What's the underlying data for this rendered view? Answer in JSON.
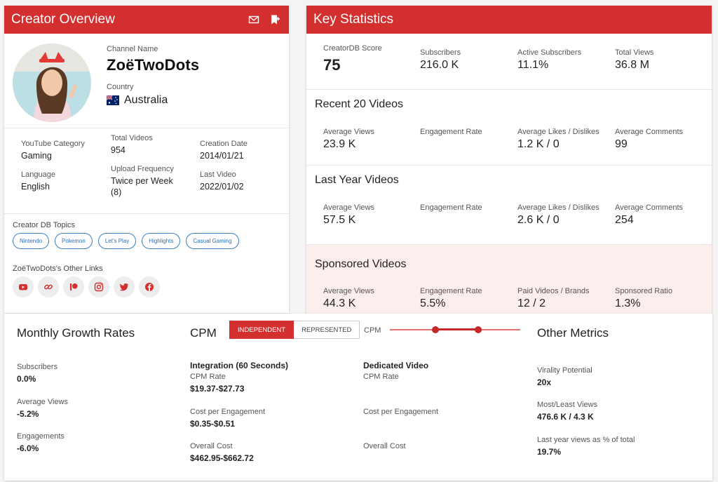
{
  "creator_overview": {
    "title": "Creator Overview",
    "icons": [
      "mail-icon",
      "bookmark-icon"
    ],
    "channel_name_label": "Channel Name",
    "channel_name": "ZoëTwoDots",
    "country_label": "Country",
    "country": "Australia",
    "meta": [
      {
        "label": "YouTube Category",
        "value": "Gaming"
      },
      {
        "label": "Language",
        "value": "English"
      },
      {
        "label": "Total Videos",
        "value": "954"
      },
      {
        "label": "Upload Frequency",
        "value": "Twice per Week (8)"
      },
      {
        "label": "Creation Date",
        "value": "2014/01/21"
      },
      {
        "label": "Last Video",
        "value": "2022/01/02"
      }
    ],
    "topics_label": "Creator DB Topics",
    "topics": [
      "Nintendo",
      "Pokemon",
      "Let's Play",
      "Highlights",
      "Casual Gaming"
    ],
    "links_label": "ZoëTwoDots's Other Links",
    "links": [
      "youtube-icon",
      "link-icon",
      "patreon-icon",
      "instagram-icon",
      "twitter-icon",
      "facebook-icon"
    ]
  },
  "key_statistics": {
    "title": "Key Statistics",
    "overview": [
      {
        "label": "CreatorDB Score",
        "value": "75"
      },
      {
        "label": "Subscribers",
        "value": "216.0 K"
      },
      {
        "label": "Active Subscribers",
        "value": "11.1%"
      },
      {
        "label": "Total Views",
        "value": "36.8 M"
      }
    ],
    "recent": {
      "title": "Recent 20 Videos",
      "stats": [
        {
          "label": "Average Views",
          "value": "23.9 K"
        },
        {
          "label": "Engagement Rate",
          "value": ""
        },
        {
          "label": "Average Likes / Dislikes",
          "value": "1.2 K / 0"
        },
        {
          "label": "Average Comments",
          "value": "99"
        }
      ]
    },
    "last_year": {
      "title": "Last Year Videos",
      "stats": [
        {
          "label": "Average Views",
          "value": "57.5 K"
        },
        {
          "label": "Engagement Rate",
          "value": ""
        },
        {
          "label": "Average Likes / Dislikes",
          "value": "2.6 K / 0"
        },
        {
          "label": "Average Comments",
          "value": "254"
        }
      ]
    },
    "sponsored": {
      "title": "Sponsored Videos",
      "stats": [
        {
          "label": "Average Views",
          "value": "44.3 K"
        },
        {
          "label": "Engagement Rate",
          "value": "5.5%"
        },
        {
          "label": "Paid Videos / Brands",
          "value": "12 / 2"
        },
        {
          "label": "Sponsored Ratio",
          "value": "1.3%"
        }
      ]
    }
  },
  "monthly_growth": {
    "title": "Monthly Growth Rates",
    "items": [
      {
        "label": "Subscribers",
        "value": "0.0%"
      },
      {
        "label": "Average Views",
        "value": "-5.2%"
      },
      {
        "label": "Engagements",
        "value": "-6.0%"
      }
    ]
  },
  "cpm": {
    "title": "CPM",
    "toggle": [
      "INDEPENDENT",
      "REPRESENTED"
    ],
    "slider_label": "CPM",
    "slider_range": [
      0.35,
      0.68
    ],
    "integration": {
      "heading": "Integration (60 Seconds)",
      "items": [
        {
          "label": "CPM Rate",
          "value": "$19.37-$27.73"
        },
        {
          "label": "Cost per Engagement",
          "value": "$0.35-$0.51"
        },
        {
          "label": "Overall Cost",
          "value": "$462.95-$662.72"
        }
      ]
    },
    "dedicated": {
      "heading": "Dedicated Video",
      "items": [
        {
          "label": "CPM Rate",
          "value": ""
        },
        {
          "label": "Cost per Engagement",
          "value": ""
        },
        {
          "label": "Overall Cost",
          "value": ""
        }
      ]
    }
  },
  "other_metrics": {
    "title": "Other Metrics",
    "items": [
      {
        "label": "Virality Potential",
        "value": "20x"
      },
      {
        "label": "Most/Least Views",
        "value": "476.6 K / 4.3 K"
      },
      {
        "label": "Last year views as % of total",
        "value": "19.7%"
      }
    ]
  },
  "colors": {
    "brand_red": "#d32f2f",
    "chip_blue": "#2a6fb8",
    "sponsored_bg": "#fdeeee"
  }
}
